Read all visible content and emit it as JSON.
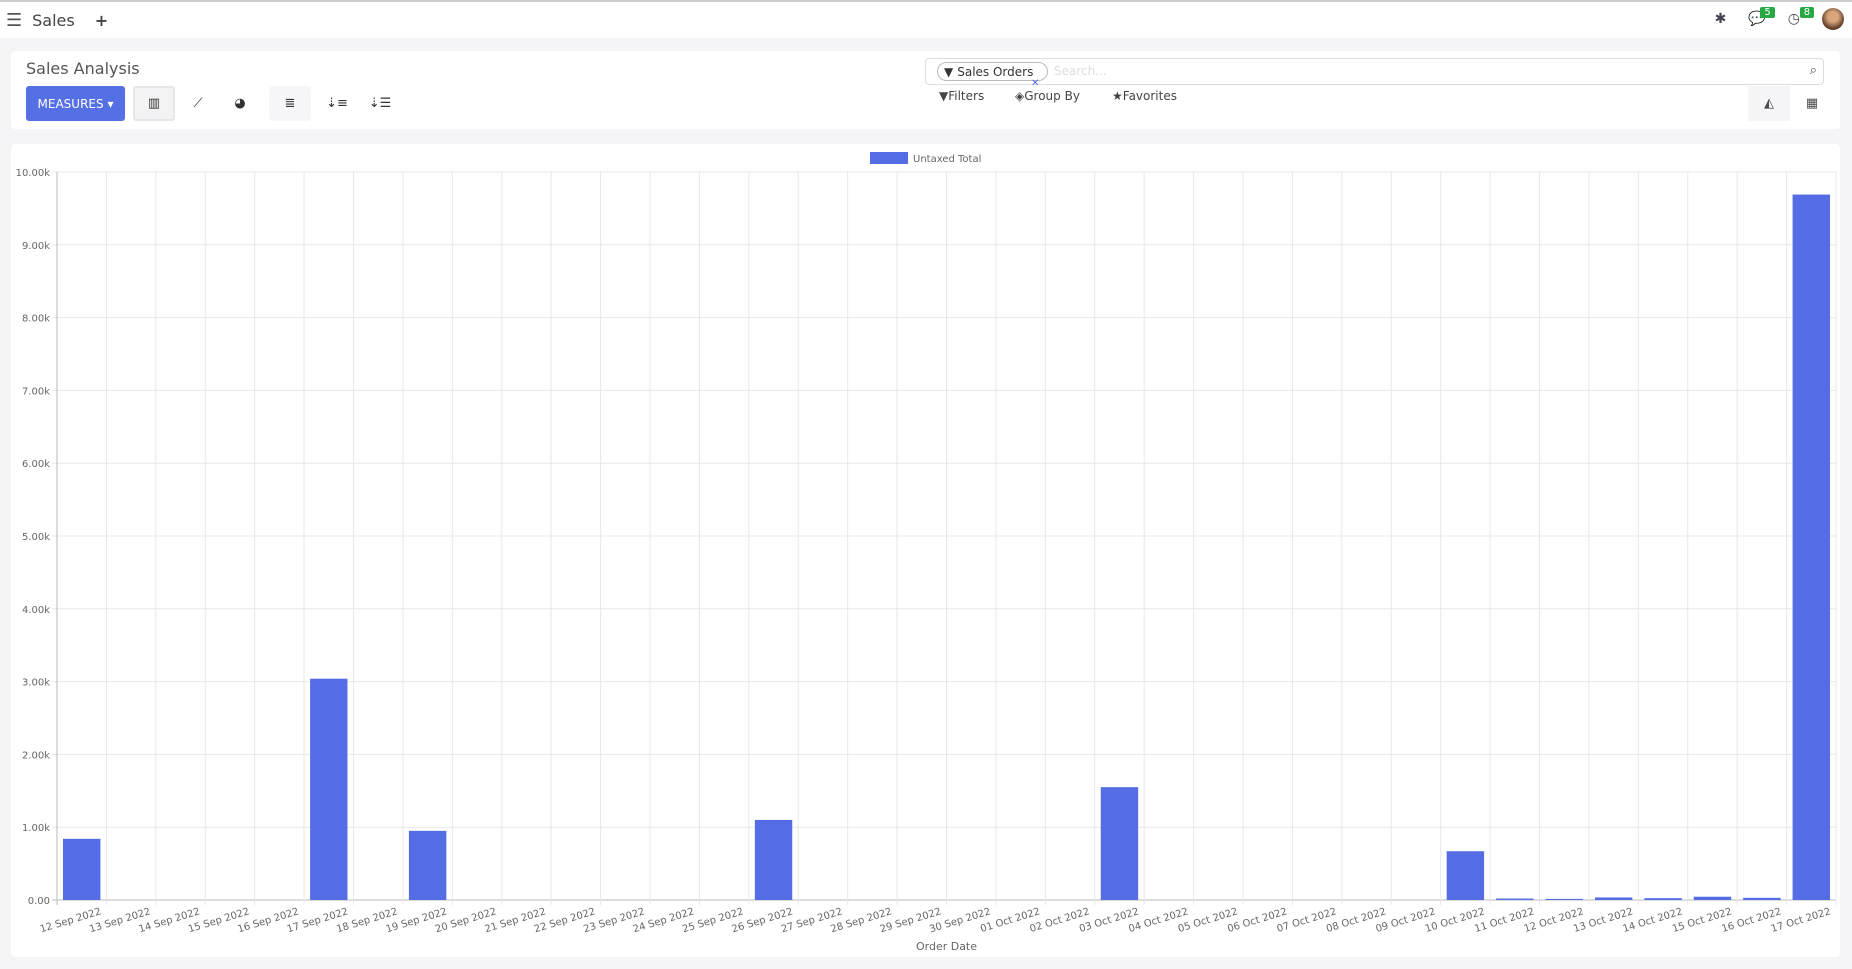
{
  "topbar": {
    "app_name": "Sales",
    "messages_count": "5",
    "activities_count": "8"
  },
  "control": {
    "title": "Sales Analysis",
    "measures_label": "MEASURES",
    "search": {
      "facet": "Sales Orders",
      "placeholder": "Search..."
    },
    "filters_label": "Filters",
    "groupby_label": "Group By",
    "favorites_label": "Favorites"
  },
  "colors": {
    "accent": "#5470e4",
    "bar": "#546de5"
  },
  "chart_data": {
    "type": "bar",
    "legend": [
      "Untaxed Total"
    ],
    "legend_position": "top",
    "xlabel": "Order Date",
    "ylabel": "",
    "ylim": [
      0,
      10000
    ],
    "yticks": [
      "0.00",
      "1.00k",
      "2.00k",
      "3.00k",
      "4.00k",
      "5.00k",
      "6.00k",
      "7.00k",
      "8.00k",
      "9.00k",
      "10.00k"
    ],
    "grid": true,
    "categories": [
      "12 Sep 2022",
      "13 Sep 2022",
      "14 Sep 2022",
      "15 Sep 2022",
      "16 Sep 2022",
      "17 Sep 2022",
      "18 Sep 2022",
      "19 Sep 2022",
      "20 Sep 2022",
      "21 Sep 2022",
      "22 Sep 2022",
      "23 Sep 2022",
      "24 Sep 2022",
      "25 Sep 2022",
      "26 Sep 2022",
      "27 Sep 2022",
      "28 Sep 2022",
      "29 Sep 2022",
      "30 Sep 2022",
      "01 Oct 2022",
      "02 Oct 2022",
      "03 Oct 2022",
      "04 Oct 2022",
      "05 Oct 2022",
      "06 Oct 2022",
      "07 Oct 2022",
      "08 Oct 2022",
      "09 Oct 2022",
      "10 Oct 2022",
      "11 Oct 2022",
      "12 Oct 2022",
      "13 Oct 2022",
      "14 Oct 2022",
      "15 Oct 2022",
      "16 Oct 2022",
      "17 Oct 2022"
    ],
    "series": [
      {
        "name": "Untaxed Total",
        "values": [
          840,
          0,
          0,
          0,
          0,
          3040,
          0,
          950,
          0,
          0,
          0,
          0,
          0,
          0,
          1100,
          0,
          0,
          0,
          0,
          0,
          0,
          1550,
          0,
          0,
          0,
          0,
          0,
          0,
          670,
          20,
          15,
          35,
          25,
          45,
          30,
          9690
        ]
      }
    ]
  }
}
